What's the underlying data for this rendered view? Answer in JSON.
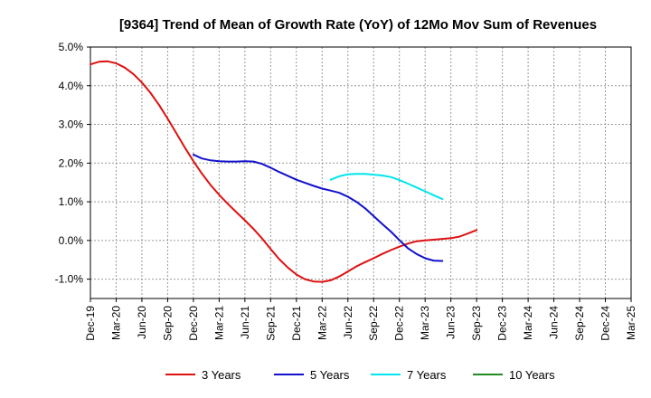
{
  "chart_data": {
    "type": "line",
    "title": "[9364]  Trend of Mean of Growth Rate (YoY) of 12Mo Mov Sum of Revenues",
    "xlabel": "",
    "ylabel": "",
    "x_ticks": [
      "Dec-19",
      "Mar-20",
      "Jun-20",
      "Sep-20",
      "Dec-20",
      "Mar-21",
      "Jun-21",
      "Sep-21",
      "Dec-21",
      "Mar-22",
      "Jun-22",
      "Sep-22",
      "Dec-22",
      "Mar-23",
      "Jun-23",
      "Sep-23",
      "Dec-23",
      "Mar-24",
      "Jun-24",
      "Sep-24",
      "Dec-24",
      "Mar-25"
    ],
    "y_ticks": [
      -1.0,
      0.0,
      1.0,
      2.0,
      3.0,
      4.0,
      5.0
    ],
    "y_tick_labels": [
      "-1.0%",
      "0.0%",
      "1.0%",
      "2.0%",
      "3.0%",
      "4.0%",
      "5.0%"
    ],
    "ylim": [
      -1.5,
      5.0
    ],
    "grid": true,
    "legend_position": "bottom",
    "series": [
      {
        "name": "3 Years",
        "color": "#dd1111",
        "points": [
          [
            0,
            4.55
          ],
          [
            0.33,
            4.62
          ],
          [
            0.67,
            4.63
          ],
          [
            1,
            4.58
          ],
          [
            1.33,
            4.47
          ],
          [
            1.67,
            4.3
          ],
          [
            2,
            4.08
          ],
          [
            2.33,
            3.82
          ],
          [
            2.67,
            3.5
          ],
          [
            3,
            3.15
          ],
          [
            3.33,
            2.78
          ],
          [
            3.67,
            2.4
          ],
          [
            4,
            2.05
          ],
          [
            4.33,
            1.73
          ],
          [
            4.67,
            1.43
          ],
          [
            5,
            1.18
          ],
          [
            5.33,
            0.95
          ],
          [
            5.67,
            0.73
          ],
          [
            6,
            0.52
          ],
          [
            6.33,
            0.3
          ],
          [
            6.67,
            0.05
          ],
          [
            7,
            -0.22
          ],
          [
            7.33,
            -0.48
          ],
          [
            7.67,
            -0.7
          ],
          [
            8,
            -0.88
          ],
          [
            8.33,
            -1.0
          ],
          [
            8.67,
            -1.06
          ],
          [
            9,
            -1.07
          ],
          [
            9.33,
            -1.03
          ],
          [
            9.67,
            -0.93
          ],
          [
            10,
            -0.8
          ],
          [
            10.33,
            -0.67
          ],
          [
            10.67,
            -0.56
          ],
          [
            11,
            -0.46
          ],
          [
            11.33,
            -0.35
          ],
          [
            11.67,
            -0.25
          ],
          [
            12,
            -0.16
          ],
          [
            12.33,
            -0.08
          ],
          [
            12.67,
            -0.02
          ],
          [
            13,
            0.0
          ],
          [
            13.33,
            0.02
          ],
          [
            13.67,
            0.04
          ],
          [
            14,
            0.06
          ],
          [
            14.33,
            0.1
          ],
          [
            14.67,
            0.18
          ],
          [
            15,
            0.27
          ]
        ]
      },
      {
        "name": "5 Years",
        "color": "#1111cc",
        "points": [
          [
            4,
            2.22
          ],
          [
            4.33,
            2.12
          ],
          [
            4.67,
            2.07
          ],
          [
            5,
            2.05
          ],
          [
            5.33,
            2.04
          ],
          [
            5.67,
            2.04
          ],
          [
            6,
            2.05
          ],
          [
            6.33,
            2.04
          ],
          [
            6.67,
            1.98
          ],
          [
            7,
            1.88
          ],
          [
            7.33,
            1.77
          ],
          [
            7.67,
            1.67
          ],
          [
            8,
            1.57
          ],
          [
            8.33,
            1.49
          ],
          [
            8.67,
            1.41
          ],
          [
            9,
            1.34
          ],
          [
            9.33,
            1.29
          ],
          [
            9.67,
            1.23
          ],
          [
            10,
            1.13
          ],
          [
            10.33,
            1.0
          ],
          [
            10.67,
            0.83
          ],
          [
            11,
            0.63
          ],
          [
            11.33,
            0.43
          ],
          [
            11.67,
            0.23
          ],
          [
            12,
            0.01
          ],
          [
            12.33,
            -0.2
          ],
          [
            12.67,
            -0.35
          ],
          [
            13,
            -0.46
          ],
          [
            13.33,
            -0.52
          ],
          [
            13.67,
            -0.53
          ]
        ]
      },
      {
        "name": "7 Years",
        "color": "#00e5ee",
        "points": [
          [
            9.33,
            1.57
          ],
          [
            9.67,
            1.66
          ],
          [
            10,
            1.71
          ],
          [
            10.33,
            1.72
          ],
          [
            10.67,
            1.72
          ],
          [
            11,
            1.7
          ],
          [
            11.33,
            1.68
          ],
          [
            11.67,
            1.64
          ],
          [
            12,
            1.56
          ],
          [
            12.33,
            1.47
          ],
          [
            12.67,
            1.37
          ],
          [
            13,
            1.27
          ],
          [
            13.33,
            1.17
          ],
          [
            13.67,
            1.07
          ]
        ]
      },
      {
        "name": "10 Years",
        "color": "#228b22",
        "points": []
      }
    ]
  }
}
